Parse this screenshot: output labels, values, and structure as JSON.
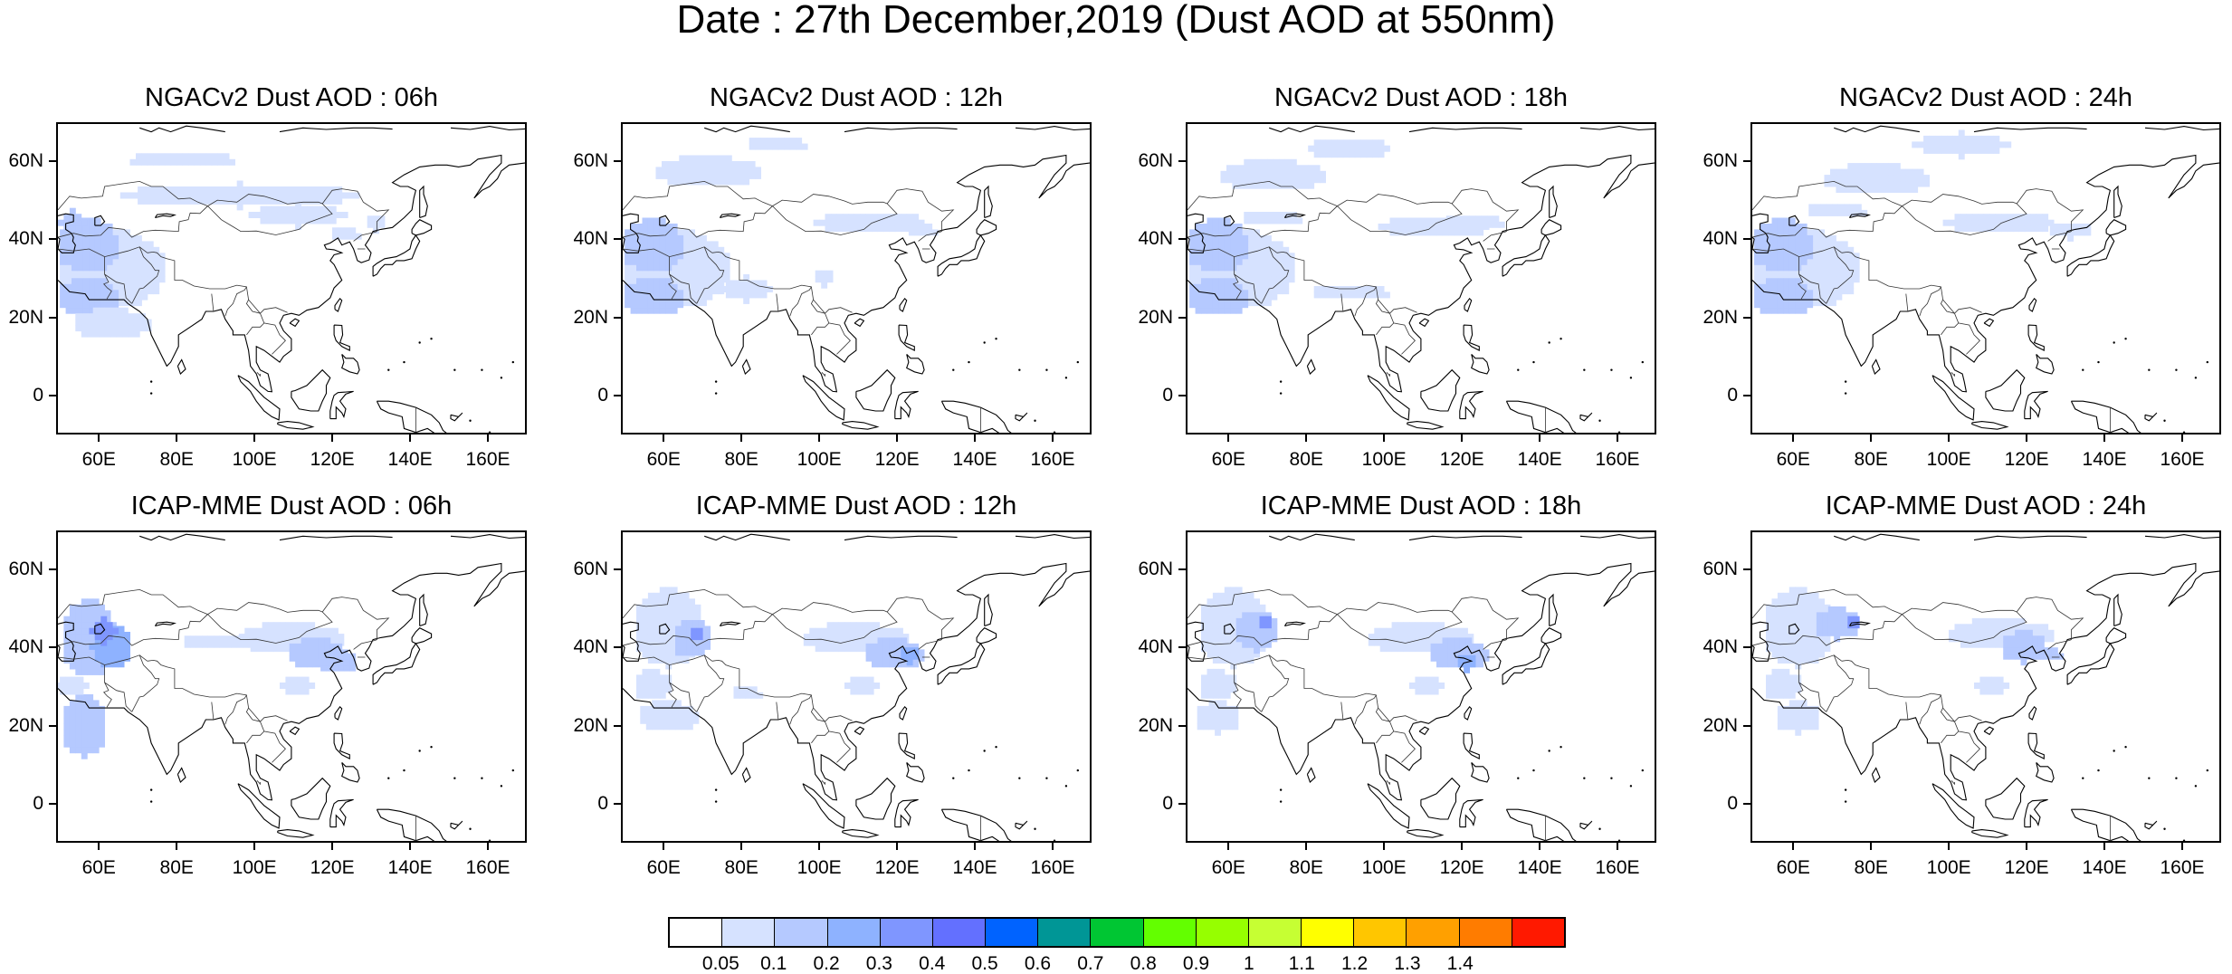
{
  "title": "Date : 27th December,2019 (Dust AOD at 550nm)",
  "panels": [
    {
      "title": "NGACv2 Dust AOD : 06h"
    },
    {
      "title": "NGACv2 Dust AOD : 12h"
    },
    {
      "title": "NGACv2 Dust AOD : 18h"
    },
    {
      "title": "NGACv2 Dust AOD : 24h"
    },
    {
      "title": "ICAP-MME Dust AOD : 06h"
    },
    {
      "title": "ICAP-MME Dust AOD : 12h"
    },
    {
      "title": "ICAP-MME Dust AOD : 18h"
    },
    {
      "title": "ICAP-MME Dust AOD : 24h"
    }
  ],
  "lat_ticks": [
    "60N",
    "40N",
    "20N",
    "0"
  ],
  "lon_ticks": [
    "60E",
    "80E",
    "100E",
    "120E",
    "140E",
    "160E"
  ],
  "colorbar": {
    "colors": [
      "#ffffff",
      "#d6e2ff",
      "#b5c9ff",
      "#8eb2ff",
      "#7f96ff",
      "#6370ff",
      "#0063ff",
      "#009696",
      "#00c633",
      "#63ff00",
      "#96ff00",
      "#c6ff33",
      "#ffff00",
      "#ffc600",
      "#ffa000",
      "#ff7c00",
      "#ff1900"
    ],
    "labels": [
      "0.05",
      "0.1",
      "0.2",
      "0.3",
      "0.4",
      "0.5",
      "0.6",
      "0.7",
      "0.8",
      "0.9",
      "1",
      "1.1",
      "1.2",
      "1.3",
      "1.4"
    ]
  }
}
